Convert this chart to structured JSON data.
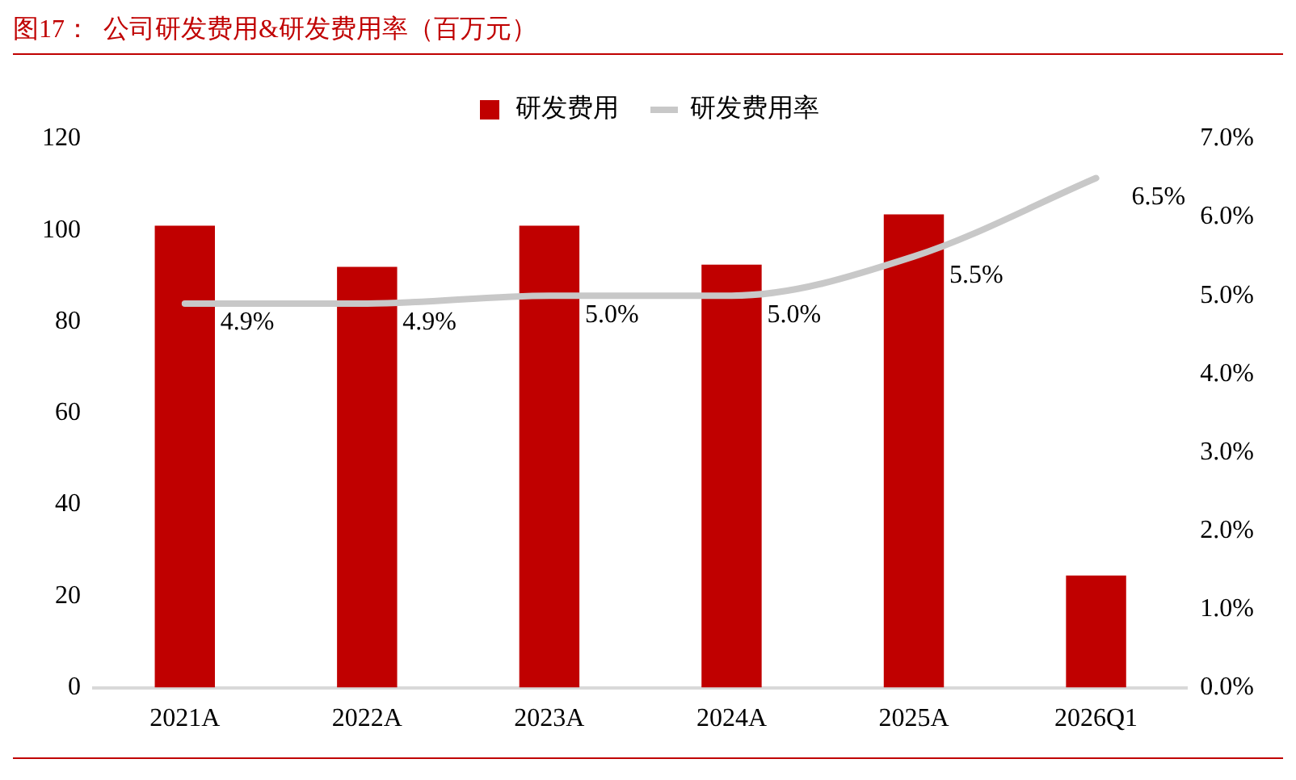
{
  "chart_data": {
    "type": "bar",
    "title": "图17：  公司研发费用&研发费用率（百万元）",
    "categories": [
      "2021A",
      "2022A",
      "2023A",
      "2024A",
      "2025A",
      "2026Q1"
    ],
    "series": [
      {
        "name": "研发费用",
        "color": "#c00000",
        "values": [
          101,
          92,
          101,
          92.5,
          103.5,
          24.5
        ]
      },
      {
        "name": "研发费用率",
        "type": "line",
        "axis": "y2",
        "color": "#c8c8c8",
        "values": [
          4.9,
          4.9,
          5.0,
          5.0,
          5.5,
          6.5
        ],
        "value_labels": [
          "4.9%",
          "4.9%",
          "5.0%",
          "5.0%",
          "5.5%",
          "6.5%"
        ]
      }
    ],
    "ylim": [
      0,
      120
    ],
    "yticks": [
      0,
      20,
      40,
      60,
      80,
      100,
      120
    ],
    "y2lim": [
      0,
      7
    ],
    "y2ticks": [
      {
        "value": 0,
        "label": "0.0%"
      },
      {
        "value": 1,
        "label": "1.0%"
      },
      {
        "value": 2,
        "label": "2.0%"
      },
      {
        "value": 3,
        "label": "3.0%"
      },
      {
        "value": 4,
        "label": "4.0%"
      },
      {
        "value": 5,
        "label": "5.0%"
      },
      {
        "value": 6,
        "label": "6.0%"
      },
      {
        "value": 7,
        "label": "7.0%"
      }
    ],
    "grid": false,
    "legend": "top",
    "marker": "none"
  }
}
